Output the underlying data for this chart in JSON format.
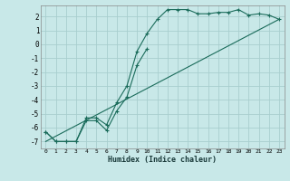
{
  "xlabel": "Humidex (Indice chaleur)",
  "background_color": "#c8e8e8",
  "grid_color": "#a8cece",
  "line_color": "#1a6b5a",
  "ylim": [
    -7.5,
    2.8
  ],
  "xlim": [
    -0.5,
    23.5
  ],
  "yticks": [
    2,
    1,
    0,
    -1,
    -2,
    -3,
    -4,
    -5,
    -6,
    -7
  ],
  "xticks": [
    0,
    1,
    2,
    3,
    4,
    5,
    6,
    7,
    8,
    9,
    10,
    11,
    12,
    13,
    14,
    15,
    16,
    17,
    18,
    19,
    20,
    21,
    22,
    23
  ],
  "curve1_x": [
    0,
    1,
    2,
    3,
    4,
    5,
    6,
    7,
    8,
    9,
    10,
    11,
    12,
    13,
    14,
    15,
    16,
    17,
    18,
    19,
    20,
    21,
    22,
    23
  ],
  "curve1_y": [
    -6.3,
    -7.0,
    -7.0,
    -7.0,
    -5.3,
    -5.3,
    -5.8,
    -4.2,
    -3.0,
    -0.5,
    0.8,
    1.8,
    2.5,
    2.5,
    2.5,
    2.2,
    2.2,
    2.3,
    2.3,
    2.5,
    2.1,
    2.2,
    2.1,
    1.8
  ],
  "curve2_x": [
    0,
    1,
    2,
    3,
    4,
    5,
    6,
    7,
    8,
    9,
    10
  ],
  "curve2_y": [
    -6.3,
    -7.0,
    -7.0,
    -7.0,
    -5.5,
    -5.5,
    -6.2,
    -4.8,
    -3.8,
    -1.5,
    -0.3
  ],
  "curve3_x": [
    0,
    23
  ],
  "curve3_y": [
    -7.0,
    1.8
  ]
}
